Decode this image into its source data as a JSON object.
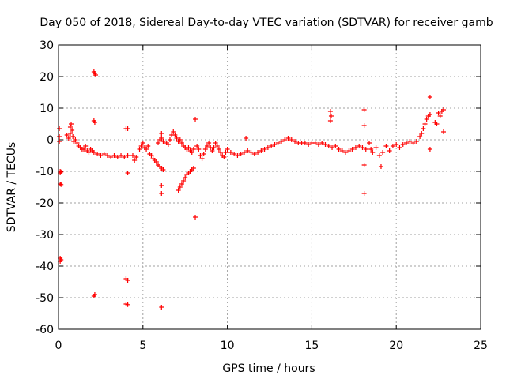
{
  "chart_data": {
    "type": "scatter",
    "title": "Day 050 of 2018, Sidereal Day-to-day VTEC variation (SDTVAR) for receiver gamb",
    "xlabel": "GPS time / hours",
    "ylabel": "SDTVAR / TECUs",
    "xlim": [
      0,
      25
    ],
    "ylim": [
      -60,
      30
    ],
    "xticks": [
      0,
      5,
      10,
      15,
      20,
      25
    ],
    "yticks": [
      -60,
      -50,
      -40,
      -30,
      -20,
      -10,
      0,
      10,
      20,
      30
    ],
    "grid": true,
    "marker": "plus",
    "color": "#ff0000",
    "series": [
      {
        "name": "SDTVAR",
        "points": [
          [
            0.05,
            3.5
          ],
          [
            0.05,
            1.0
          ],
          [
            0.05,
            -0.5
          ],
          [
            0.1,
            -10.0
          ],
          [
            0.1,
            -10.5
          ],
          [
            0.15,
            -10.2
          ],
          [
            0.1,
            -14.0
          ],
          [
            0.15,
            -14.2
          ],
          [
            0.1,
            -37.5
          ],
          [
            0.15,
            -38.0
          ],
          [
            0.1,
            -38.5
          ],
          [
            0.5,
            1.5
          ],
          [
            0.6,
            0.5
          ],
          [
            0.7,
            2.0
          ],
          [
            0.7,
            4.0
          ],
          [
            0.75,
            5.0
          ],
          [
            0.8,
            3.0
          ],
          [
            0.85,
            1.0
          ],
          [
            0.9,
            -0.5
          ],
          [
            1.0,
            0.0
          ],
          [
            1.1,
            -1.0
          ],
          [
            1.2,
            -2.0
          ],
          [
            1.3,
            -2.5
          ],
          [
            1.4,
            -3.0
          ],
          [
            1.5,
            -3.0
          ],
          [
            1.6,
            -2.0
          ],
          [
            1.7,
            -3.5
          ],
          [
            1.8,
            -4.0
          ],
          [
            1.9,
            -3.0
          ],
          [
            2.0,
            -3.5
          ],
          [
            2.1,
            -4.0
          ],
          [
            2.1,
            21.5
          ],
          [
            2.15,
            21.0
          ],
          [
            2.2,
            20.5
          ],
          [
            2.1,
            6.0
          ],
          [
            2.15,
            5.5
          ],
          [
            2.1,
            -49.5
          ],
          [
            2.15,
            -49.0
          ],
          [
            2.3,
            -4.5
          ],
          [
            2.5,
            -5.0
          ],
          [
            2.7,
            -4.5
          ],
          [
            2.9,
            -5.0
          ],
          [
            3.1,
            -5.5
          ],
          [
            3.3,
            -5.0
          ],
          [
            3.5,
            -5.5
          ],
          [
            3.7,
            -5.0
          ],
          [
            3.9,
            -5.5
          ],
          [
            4.1,
            -5.0
          ],
          [
            4.0,
            3.5
          ],
          [
            4.1,
            3.5
          ],
          [
            4.1,
            -10.5
          ],
          [
            4.0,
            -44.0
          ],
          [
            4.1,
            -44.5
          ],
          [
            4.0,
            -52.0
          ],
          [
            4.1,
            -52.2
          ],
          [
            4.4,
            -5.0
          ],
          [
            4.5,
            -6.5
          ],
          [
            4.6,
            -5.5
          ],
          [
            4.8,
            -3.0
          ],
          [
            4.9,
            -2.0
          ],
          [
            5.0,
            -1.0
          ],
          [
            5.1,
            -2.5
          ],
          [
            5.2,
            -3.0
          ],
          [
            5.3,
            -2.0
          ],
          [
            5.4,
            -4.5
          ],
          [
            5.5,
            -5.0
          ],
          [
            5.6,
            -6.0
          ],
          [
            5.7,
            -6.5
          ],
          [
            5.8,
            -7.0
          ],
          [
            5.9,
            -8.0
          ],
          [
            6.0,
            -8.5
          ],
          [
            6.1,
            -9.0
          ],
          [
            6.2,
            -9.5
          ],
          [
            5.9,
            -1.0
          ],
          [
            6.0,
            0.0
          ],
          [
            6.1,
            0.5
          ],
          [
            6.2,
            -0.5
          ],
          [
            6.1,
            2.0
          ],
          [
            6.1,
            -14.5
          ],
          [
            6.1,
            -17.0
          ],
          [
            6.1,
            -53.0
          ],
          [
            6.4,
            -1.0
          ],
          [
            6.5,
            -1.5
          ],
          [
            6.6,
            0.0
          ],
          [
            6.7,
            1.5
          ],
          [
            6.8,
            2.5
          ],
          [
            6.9,
            1.5
          ],
          [
            7.0,
            0.5
          ],
          [
            7.1,
            -0.5
          ],
          [
            7.2,
            0.0
          ],
          [
            7.3,
            -1.0
          ],
          [
            7.4,
            -2.0
          ],
          [
            7.5,
            -2.5
          ],
          [
            7.6,
            -3.0
          ],
          [
            7.7,
            -2.5
          ],
          [
            7.8,
            -3.5
          ],
          [
            7.9,
            -4.0
          ],
          [
            8.0,
            -3.0
          ],
          [
            7.1,
            -16.0
          ],
          [
            7.2,
            -15.0
          ],
          [
            7.3,
            -14.0
          ],
          [
            7.4,
            -13.0
          ],
          [
            7.5,
            -12.0
          ],
          [
            7.6,
            -11.0
          ],
          [
            7.7,
            -10.5
          ],
          [
            7.8,
            -10.0
          ],
          [
            7.9,
            -9.5
          ],
          [
            8.0,
            -9.0
          ],
          [
            8.1,
            6.5
          ],
          [
            8.1,
            -24.5
          ],
          [
            8.2,
            -2.0
          ],
          [
            8.3,
            -3.0
          ],
          [
            8.4,
            -5.0
          ],
          [
            8.5,
            -6.0
          ],
          [
            8.6,
            -4.5
          ],
          [
            8.7,
            -3.0
          ],
          [
            8.8,
            -2.0
          ],
          [
            8.9,
            -1.0
          ],
          [
            9.0,
            -2.5
          ],
          [
            9.1,
            -3.5
          ],
          [
            9.2,
            -2.5
          ],
          [
            9.3,
            -1.0
          ],
          [
            9.4,
            -2.0
          ],
          [
            9.5,
            -3.0
          ],
          [
            9.6,
            -4.0
          ],
          [
            9.7,
            -5.0
          ],
          [
            9.8,
            -5.5
          ],
          [
            9.9,
            -4.0
          ],
          [
            10.0,
            -3.0
          ],
          [
            10.2,
            -4.0
          ],
          [
            10.4,
            -4.5
          ],
          [
            10.6,
            -5.0
          ],
          [
            10.8,
            -4.5
          ],
          [
            11.0,
            -4.0
          ],
          [
            11.2,
            -3.5
          ],
          [
            11.4,
            -4.0
          ],
          [
            11.6,
            -4.5
          ],
          [
            11.8,
            -4.0
          ],
          [
            12.0,
            -3.5
          ],
          [
            11.1,
            0.5
          ],
          [
            12.2,
            -3.0
          ],
          [
            12.4,
            -2.5
          ],
          [
            12.6,
            -2.0
          ],
          [
            12.8,
            -1.5
          ],
          [
            13.0,
            -1.0
          ],
          [
            13.2,
            -0.5
          ],
          [
            13.4,
            0.0
          ],
          [
            13.6,
            0.5
          ],
          [
            13.8,
            0.0
          ],
          [
            14.0,
            -0.5
          ],
          [
            14.2,
            -1.0
          ],
          [
            14.4,
            -1.0
          ],
          [
            14.6,
            -1.0
          ],
          [
            14.8,
            -1.5
          ],
          [
            15.0,
            -1.0
          ],
          [
            15.2,
            -1.0
          ],
          [
            15.4,
            -1.5
          ],
          [
            15.6,
            -1.0
          ],
          [
            15.8,
            -1.5
          ],
          [
            16.0,
            -2.0
          ],
          [
            16.2,
            -2.5
          ],
          [
            16.4,
            -2.0
          ],
          [
            16.1,
            9.0
          ],
          [
            16.15,
            7.5
          ],
          [
            16.1,
            6.0
          ],
          [
            16.6,
            -3.0
          ],
          [
            16.8,
            -3.5
          ],
          [
            17.0,
            -4.0
          ],
          [
            17.2,
            -3.5
          ],
          [
            17.4,
            -3.0
          ],
          [
            17.6,
            -2.5
          ],
          [
            17.8,
            -2.0
          ],
          [
            18.0,
            -2.5
          ],
          [
            18.2,
            -3.0
          ],
          [
            18.1,
            9.5
          ],
          [
            18.1,
            4.5
          ],
          [
            18.1,
            -8.0
          ],
          [
            18.1,
            -17.0
          ],
          [
            18.4,
            -1.0
          ],
          [
            18.5,
            -3.0
          ],
          [
            18.6,
            -4.0
          ],
          [
            18.8,
            -2.5
          ],
          [
            19.0,
            -5.0
          ],
          [
            19.2,
            -4.0
          ],
          [
            19.1,
            -8.5
          ],
          [
            19.4,
            -2.0
          ],
          [
            19.6,
            -3.5
          ],
          [
            19.8,
            -2.0
          ],
          [
            20.0,
            -1.5
          ],
          [
            20.2,
            -2.5
          ],
          [
            20.4,
            -1.5
          ],
          [
            20.6,
            -1.0
          ],
          [
            20.8,
            -0.5
          ],
          [
            21.0,
            -1.0
          ],
          [
            21.2,
            -0.5
          ],
          [
            21.4,
            1.0
          ],
          [
            21.5,
            2.0
          ],
          [
            21.6,
            3.5
          ],
          [
            21.7,
            5.0
          ],
          [
            21.8,
            6.5
          ],
          [
            21.9,
            7.5
          ],
          [
            22.0,
            8.0
          ],
          [
            22.0,
            13.5
          ],
          [
            22.0,
            -3.0
          ],
          [
            22.3,
            5.5
          ],
          [
            22.4,
            5.0
          ],
          [
            22.5,
            8.5
          ],
          [
            22.6,
            7.5
          ],
          [
            22.7,
            9.0
          ],
          [
            22.8,
            9.5
          ],
          [
            22.8,
            2.5
          ]
        ]
      }
    ]
  }
}
